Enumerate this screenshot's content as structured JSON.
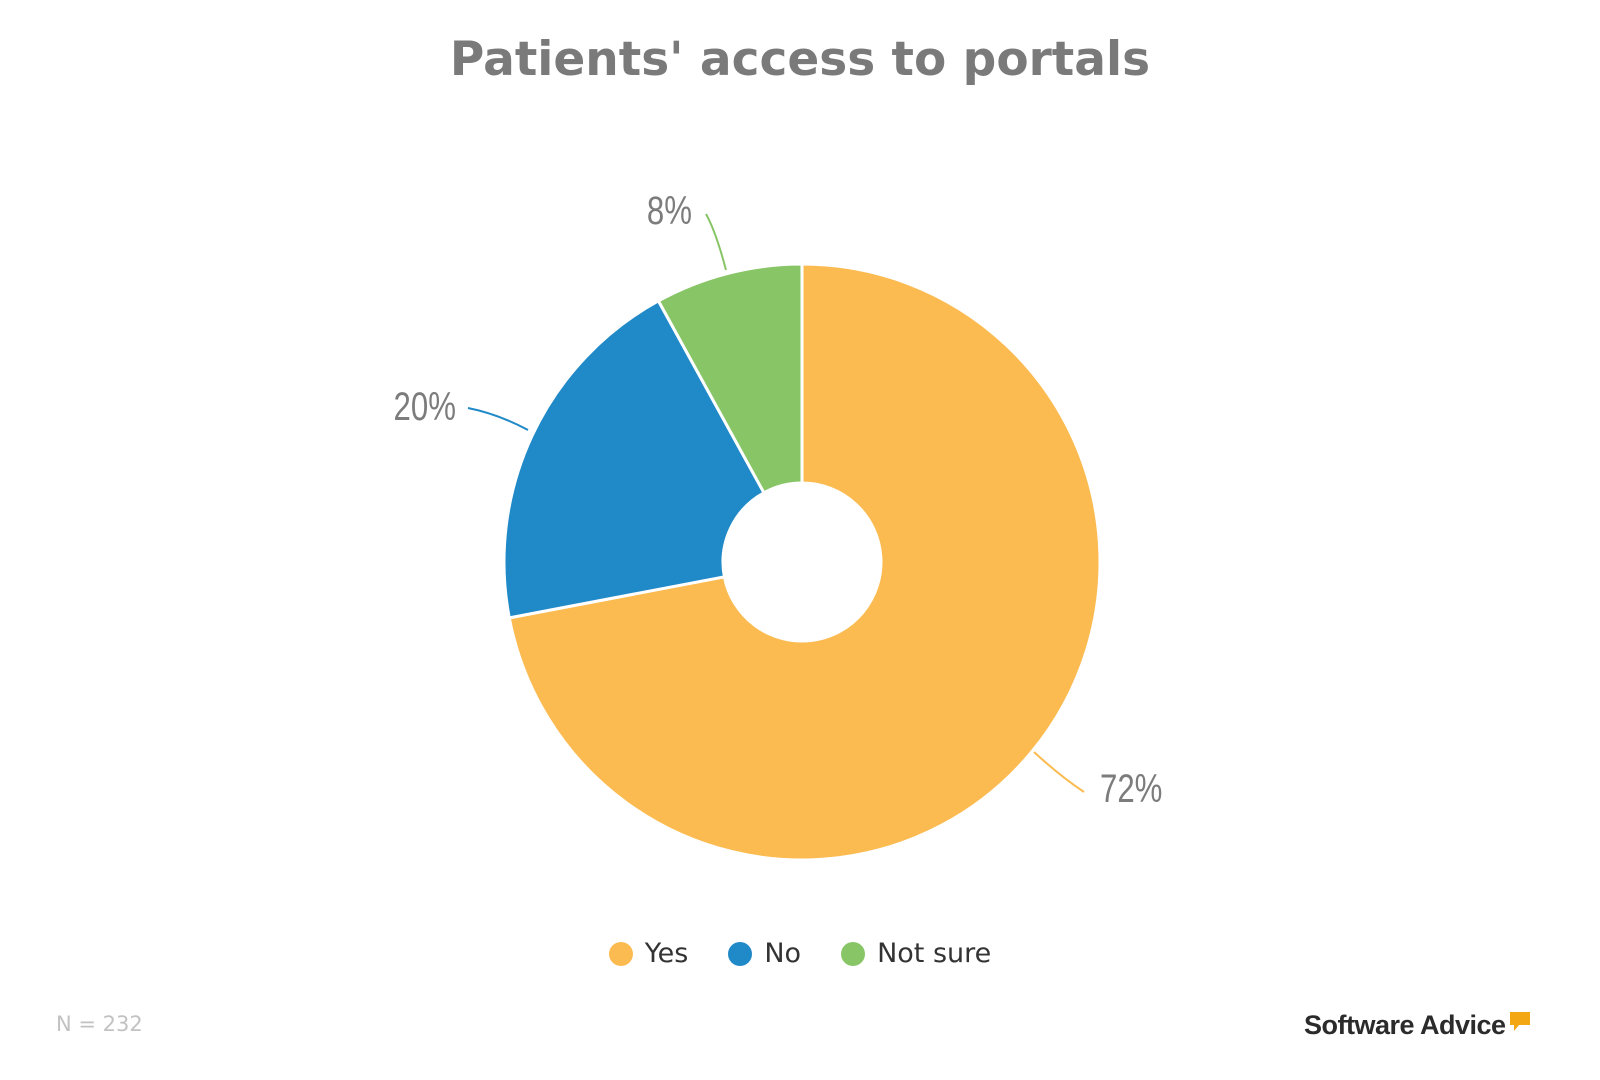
{
  "chart_data": {
    "type": "pie",
    "title": "Patients' access to portals",
    "categories": [
      "Yes",
      "No",
      "Not sure"
    ],
    "values": [
      72,
      20,
      8
    ],
    "value_labels": [
      "72%",
      "20%",
      "8%"
    ],
    "colors": [
      "#fbbb50",
      "#2089c7",
      "#88c567"
    ],
    "donut": true,
    "legend_position": "bottom"
  },
  "footer": {
    "sample_note": "N = 232",
    "brand": "Software Advice"
  }
}
